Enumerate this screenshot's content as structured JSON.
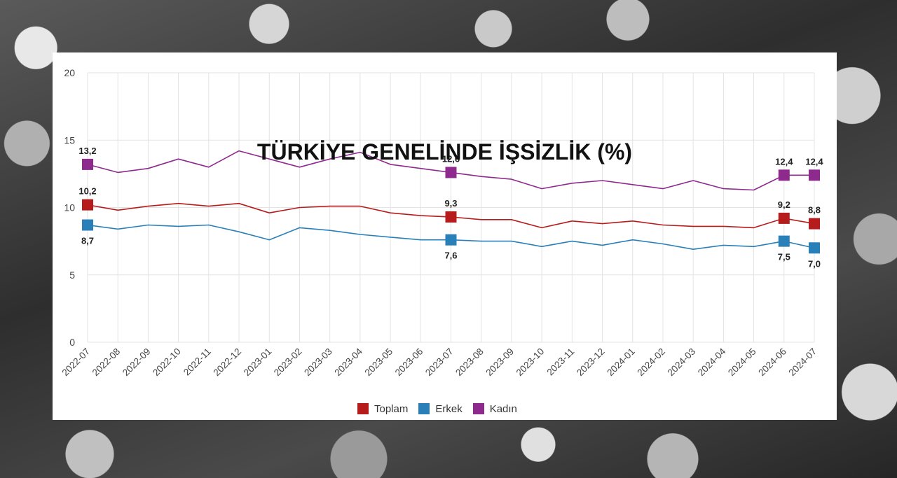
{
  "chart_data": {
    "type": "line",
    "title": "TÜRKİYE GENELİNDE İŞSİZLİK (%)",
    "xlabel": "",
    "ylabel": "",
    "ylim": [
      0,
      20
    ],
    "yticks": [
      0,
      5,
      10,
      15,
      20
    ],
    "ytick_labels": [
      "0",
      "5",
      "10",
      "15",
      "20"
    ],
    "grid": true,
    "legend_position": "bottom",
    "categories": [
      "2022-07",
      "2022-08",
      "2022-09",
      "2022-10",
      "2022-11",
      "2022-12",
      "2023-01",
      "2023-02",
      "2023-03",
      "2023-04",
      "2023-05",
      "2023-06",
      "2023-07",
      "2023-08",
      "2023-09",
      "2023-10",
      "2023-11",
      "2023-12",
      "2024-01",
      "2024-02",
      "2024-03",
      "2024-04",
      "2024-05",
      "2024-06",
      "2024-07"
    ],
    "series": [
      {
        "name": "Toplam",
        "color": "#b71c1c",
        "values": [
          10.2,
          9.8,
          10.1,
          10.3,
          10.1,
          10.3,
          9.6,
          10.0,
          10.1,
          10.1,
          9.6,
          9.4,
          9.3,
          9.1,
          9.1,
          8.5,
          9.0,
          8.8,
          9.0,
          8.7,
          8.6,
          8.6,
          8.5,
          9.2,
          8.8
        ],
        "labeled": [
          {
            "index": 0,
            "label": "10,2",
            "pos": "above"
          },
          {
            "index": 12,
            "label": "9,3",
            "pos": "above"
          },
          {
            "index": 23,
            "label": "9,2",
            "pos": "above"
          },
          {
            "index": 24,
            "label": "8,8",
            "pos": "above"
          }
        ]
      },
      {
        "name": "Erkek",
        "color": "#2980b9",
        "values": [
          8.7,
          8.4,
          8.7,
          8.6,
          8.7,
          8.2,
          7.6,
          8.5,
          8.3,
          8.0,
          7.8,
          7.6,
          7.6,
          7.5,
          7.5,
          7.1,
          7.5,
          7.2,
          7.6,
          7.3,
          6.9,
          7.2,
          7.1,
          7.5,
          7.0
        ],
        "labeled": [
          {
            "index": 0,
            "label": "8,7",
            "pos": "below"
          },
          {
            "index": 12,
            "label": "7,6",
            "pos": "below"
          },
          {
            "index": 23,
            "label": "7,5",
            "pos": "below"
          },
          {
            "index": 24,
            "label": "7,0",
            "pos": "below"
          }
        ]
      },
      {
        "name": "Kadın",
        "color": "#8e2a8e",
        "values": [
          13.2,
          12.6,
          12.9,
          13.6,
          13.0,
          14.2,
          13.6,
          13.0,
          13.6,
          14.1,
          13.2,
          12.9,
          12.6,
          12.3,
          12.1,
          11.4,
          11.8,
          12.0,
          11.7,
          11.4,
          12.0,
          11.4,
          11.3,
          12.4,
          12.4
        ],
        "labeled": [
          {
            "index": 0,
            "label": "13,2",
            "pos": "above"
          },
          {
            "index": 12,
            "label": "12,6",
            "pos": "above"
          },
          {
            "index": 23,
            "label": "12,4",
            "pos": "above"
          },
          {
            "index": 24,
            "label": "12,4",
            "pos": "above"
          }
        ]
      }
    ]
  }
}
